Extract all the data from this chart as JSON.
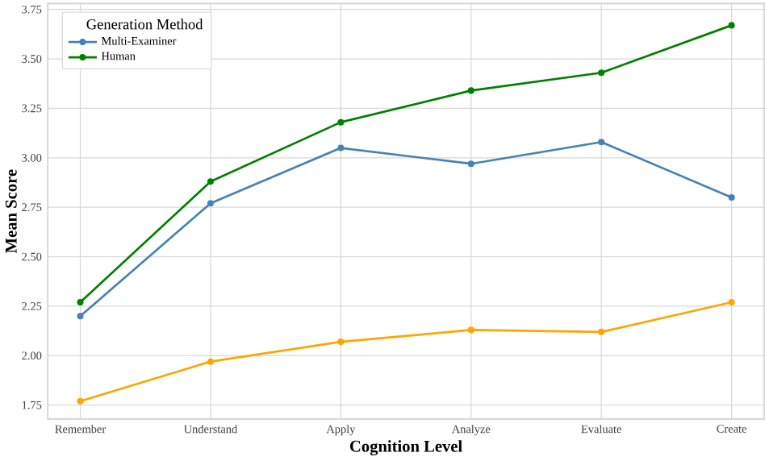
{
  "chart_data": {
    "type": "line",
    "xlabel": "Cognition Level",
    "ylabel": "Mean Score",
    "legend_title": "Generation Method",
    "categories": [
      "Remember",
      "Understand",
      "Apply",
      "Analyze",
      "Evaluate",
      "Create"
    ],
    "series": [
      {
        "name": "Multi-Examiner",
        "color": "#4682b4",
        "values": [
          2.2,
          2.77,
          3.05,
          2.97,
          3.08,
          2.8
        ]
      },
      {
        "color": "#ffa500",
        "values": [
          1.77,
          1.97,
          2.07,
          2.13,
          2.12,
          2.27
        ]
      },
      {
        "name": "Human",
        "color": "#008000",
        "values": [
          2.27,
          2.88,
          3.18,
          3.34,
          3.43,
          3.67
        ]
      }
    ],
    "ylim": [
      1.68,
      3.78
    ],
    "yticks": [
      {
        "value": 1.75,
        "label": "1.75"
      },
      {
        "value": 2.0,
        "label": "2.00"
      },
      {
        "value": 2.25,
        "label": "2.25"
      },
      {
        "value": 2.5,
        "label": "2.50"
      },
      {
        "value": 2.75,
        "label": "2.75"
      },
      {
        "value": 3.0,
        "label": "3.00"
      },
      {
        "value": 3.25,
        "label": "3.25"
      },
      {
        "value": 3.5,
        "label": "3.50"
      },
      {
        "value": 3.75,
        "label": "3.75"
      }
    ],
    "grid": true,
    "legend": "top left",
    "marker": "circle",
    "line_style": "solid"
  }
}
